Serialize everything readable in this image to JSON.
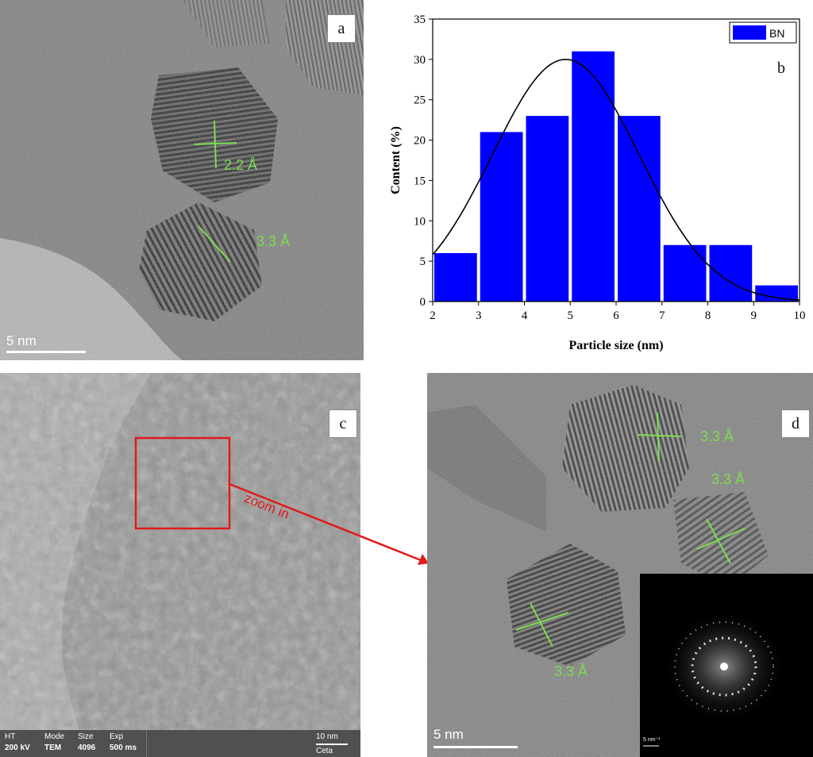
{
  "panels": {
    "a": {
      "letter": "a",
      "lattice_labels": [
        "2.2 Å",
        "3.3 Å"
      ],
      "scale_bar": "5 nm"
    },
    "b": {
      "letter": "b"
    },
    "c": {
      "letter": "c",
      "annotation": "zoom in",
      "info_bar": [
        {
          "key": "HT",
          "value": "200 kV"
        },
        {
          "key": "Mode",
          "value": "TEM"
        },
        {
          "key": "Size",
          "value": "4096"
        },
        {
          "key": "Exp",
          "value": "500 ms"
        }
      ],
      "scale_bar": "10 nm",
      "camera": "Ceta"
    },
    "d": {
      "letter": "d",
      "lattice_labels": [
        "3.3 Å",
        "3.3 Å",
        "3.3 Å"
      ],
      "scale_bar": "5 nm",
      "inset_scale": "5 nm⁻¹"
    }
  },
  "colors": {
    "bar_fill": "#0000ff",
    "fit_line": "#000000",
    "lattice_marks": "#7ddc4f",
    "zoom_box": "#e01b1b"
  },
  "chart_data": {
    "type": "bar",
    "x": [
      2.5,
      3.5,
      4.5,
      5.5,
      6.5,
      7.5,
      8.5,
      9.5
    ],
    "values": [
      6,
      21,
      23,
      31,
      23,
      7,
      7,
      2
    ],
    "bin_width": 1,
    "xlabel": "Particle size (nm)",
    "ylabel": "Content (%)",
    "xlim": [
      2,
      10
    ],
    "ylim": [
      0,
      35
    ],
    "xticks": [
      2,
      3,
      4,
      5,
      6,
      7,
      8,
      9,
      10
    ],
    "yticks": [
      0,
      5,
      10,
      15,
      20,
      25,
      30,
      35
    ],
    "legend": {
      "position": "top-right",
      "entries": [
        "BN"
      ]
    },
    "series": [
      {
        "name": "BN",
        "values": [
          6,
          21,
          23,
          31,
          23,
          7,
          7,
          2
        ]
      }
    ],
    "fit": {
      "type": "gaussian",
      "mean": 4.9,
      "sigma": 1.6,
      "peak": 30
    },
    "grid": false
  }
}
